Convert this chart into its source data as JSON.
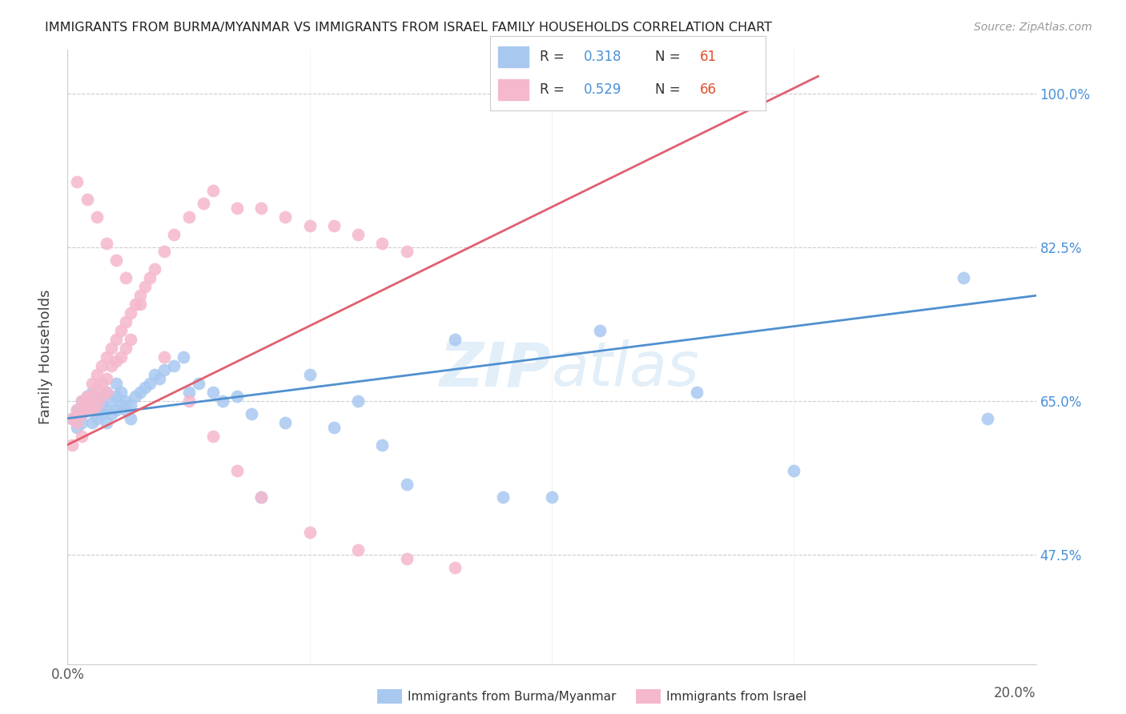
{
  "title": "IMMIGRANTS FROM BURMA/MYANMAR VS IMMIGRANTS FROM ISRAEL FAMILY HOUSEHOLDS CORRELATION CHART",
  "source": "Source: ZipAtlas.com",
  "ylabel": "Family Households",
  "yticks": [
    "47.5%",
    "65.0%",
    "82.5%",
    "100.0%"
  ],
  "ytick_values": [
    0.475,
    0.65,
    0.825,
    1.0
  ],
  "xlim": [
    0.0,
    0.2
  ],
  "ylim": [
    0.35,
    1.05
  ],
  "legend_r_blue": "0.318",
  "legend_n_blue": "61",
  "legend_r_pink": "0.529",
  "legend_n_pink": "66",
  "color_blue": "#A8C8F0",
  "color_pink": "#F5B8CC",
  "color_blue_line": "#5090D0",
  "color_pink_line": "#E06070",
  "watermark": "ZIPatlas",
  "blue_x": [
    0.001,
    0.002,
    0.002,
    0.003,
    0.003,
    0.003,
    0.004,
    0.004,
    0.005,
    0.005,
    0.005,
    0.006,
    0.006,
    0.006,
    0.007,
    0.007,
    0.007,
    0.008,
    0.008,
    0.008,
    0.009,
    0.009,
    0.01,
    0.01,
    0.01,
    0.011,
    0.011,
    0.012,
    0.012,
    0.013,
    0.013,
    0.014,
    0.015,
    0.016,
    0.017,
    0.018,
    0.019,
    0.02,
    0.022,
    0.024,
    0.025,
    0.027,
    0.03,
    0.032,
    0.035,
    0.038,
    0.04,
    0.045,
    0.05,
    0.055,
    0.06,
    0.065,
    0.07,
    0.08,
    0.09,
    0.1,
    0.11,
    0.13,
    0.15,
    0.185,
    0.19
  ],
  "blue_y": [
    0.63,
    0.64,
    0.62,
    0.65,
    0.635,
    0.625,
    0.645,
    0.655,
    0.66,
    0.64,
    0.625,
    0.65,
    0.64,
    0.63,
    0.655,
    0.645,
    0.635,
    0.66,
    0.64,
    0.625,
    0.65,
    0.635,
    0.67,
    0.655,
    0.64,
    0.66,
    0.645,
    0.65,
    0.64,
    0.645,
    0.63,
    0.655,
    0.66,
    0.665,
    0.67,
    0.68,
    0.675,
    0.685,
    0.69,
    0.7,
    0.66,
    0.67,
    0.66,
    0.65,
    0.655,
    0.635,
    0.54,
    0.625,
    0.68,
    0.62,
    0.65,
    0.6,
    0.555,
    0.72,
    0.54,
    0.54,
    0.73,
    0.66,
    0.57,
    0.79,
    0.63
  ],
  "pink_x": [
    0.001,
    0.001,
    0.002,
    0.002,
    0.003,
    0.003,
    0.003,
    0.004,
    0.004,
    0.004,
    0.005,
    0.005,
    0.005,
    0.006,
    0.006,
    0.006,
    0.007,
    0.007,
    0.007,
    0.008,
    0.008,
    0.008,
    0.009,
    0.009,
    0.01,
    0.01,
    0.011,
    0.011,
    0.012,
    0.012,
    0.013,
    0.013,
    0.014,
    0.015,
    0.016,
    0.017,
    0.018,
    0.02,
    0.022,
    0.025,
    0.028,
    0.03,
    0.035,
    0.04,
    0.045,
    0.05,
    0.055,
    0.06,
    0.065,
    0.07,
    0.002,
    0.004,
    0.006,
    0.008,
    0.01,
    0.012,
    0.015,
    0.02,
    0.025,
    0.03,
    0.035,
    0.04,
    0.05,
    0.06,
    0.07,
    0.08
  ],
  "pink_y": [
    0.63,
    0.6,
    0.64,
    0.625,
    0.65,
    0.635,
    0.61,
    0.645,
    0.655,
    0.64,
    0.67,
    0.655,
    0.64,
    0.68,
    0.665,
    0.645,
    0.69,
    0.67,
    0.655,
    0.7,
    0.675,
    0.66,
    0.71,
    0.69,
    0.72,
    0.695,
    0.73,
    0.7,
    0.74,
    0.71,
    0.75,
    0.72,
    0.76,
    0.77,
    0.78,
    0.79,
    0.8,
    0.82,
    0.84,
    0.86,
    0.875,
    0.89,
    0.87,
    0.87,
    0.86,
    0.85,
    0.85,
    0.84,
    0.83,
    0.82,
    0.9,
    0.88,
    0.86,
    0.83,
    0.81,
    0.79,
    0.76,
    0.7,
    0.65,
    0.61,
    0.57,
    0.54,
    0.5,
    0.48,
    0.47,
    0.46
  ],
  "blue_line_x": [
    0.0,
    0.2
  ],
  "blue_line_y": [
    0.63,
    0.77
  ],
  "pink_line_x": [
    0.0,
    0.155
  ],
  "pink_line_y": [
    0.6,
    1.02
  ]
}
